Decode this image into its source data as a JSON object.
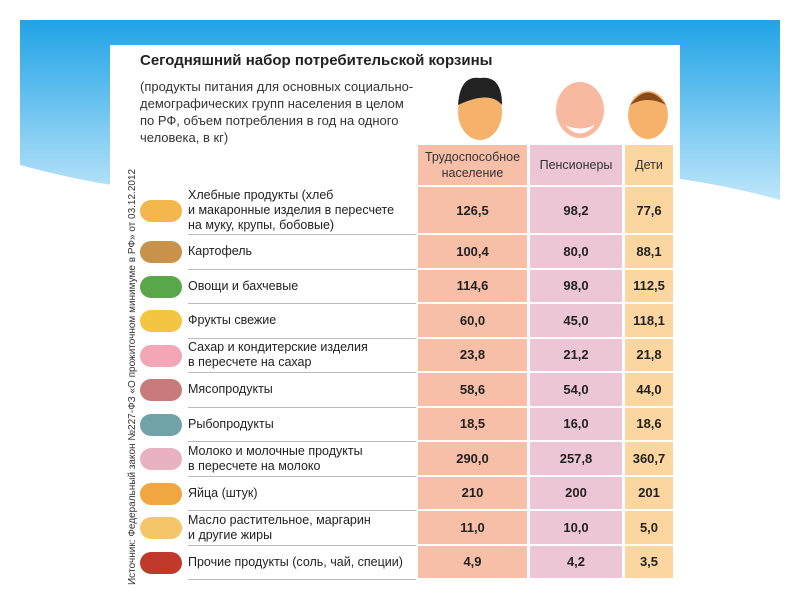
{
  "header": {
    "title": "Сегодняшний набор потребительской корзины",
    "subtitle": "(продукты питания для основных социально-\nдемографических групп населения в целом\nпо РФ, объем потребления в год на одного\nчеловека, в кг)",
    "source": "Источник: Федеральный закон №227-ФЗ «О прожиточном минимуме в РФ» от 03.12.2012"
  },
  "table": {
    "columns": [
      "Трудоспособное\nнаселение",
      "Пенсионеры",
      "Дети"
    ],
    "rows": [
      [
        "Хлебные продукты (хлеб\nи макаронные изделия в пересчете\nна муку, крупы, бобовые)",
        "126,5",
        "98,2",
        "77,6"
      ],
      [
        "Картофель",
        "100,4",
        "80,0",
        "88,1"
      ],
      [
        "Овощи и бахчевые",
        "114,6",
        "98,0",
        "112,5"
      ],
      [
        "Фрукты свежие",
        "60,0",
        "45,0",
        "118,1"
      ],
      [
        "Сахар и кондитерские изделия\nв пересчете на сахар",
        "23,8",
        "21,2",
        "21,8"
      ],
      [
        "Мясопродукты",
        "58,6",
        "54,0",
        "44,0"
      ],
      [
        "Рыбопродукты",
        "18,5",
        "16,0",
        "18,6"
      ],
      [
        "Молоко и молочные продукты\nв пересчете на молоко",
        "290,0",
        "257,8",
        "360,7"
      ],
      [
        "Яйца (штук)",
        "210",
        "200",
        "201"
      ],
      [
        "Масло растительное, маргарин\nи другие жиры",
        "11,0",
        "10,0",
        "5,0"
      ],
      [
        "Прочие продукты (соль, чай, специи)",
        "4,9",
        "4,2",
        "3,5"
      ]
    ]
  }
}
